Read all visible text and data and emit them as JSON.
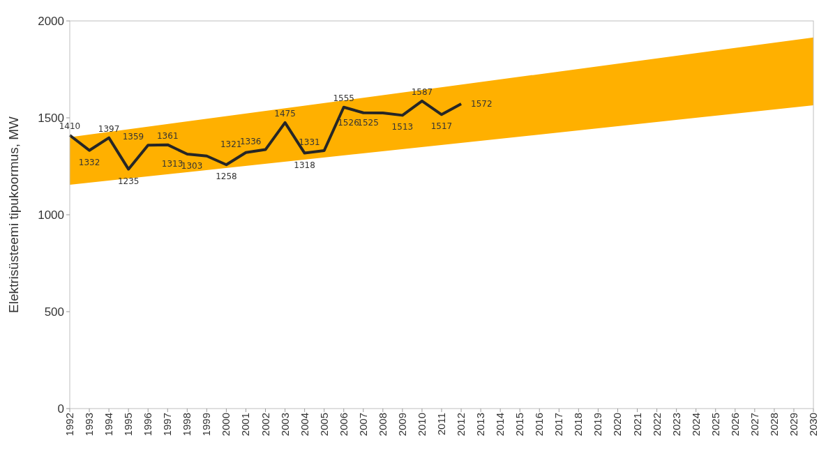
{
  "chart_data": {
    "type": "line",
    "ylabel": "Elektrisüsteemi tipukoormus, MW",
    "xlim": [
      1992,
      2030
    ],
    "xticks": [
      1992,
      1993,
      1994,
      1995,
      1996,
      1997,
      1998,
      1999,
      2000,
      2001,
      2002,
      2003,
      2004,
      2005,
      2006,
      2007,
      2008,
      2009,
      2010,
      2011,
      2012,
      2013,
      2014,
      2015,
      2016,
      2017,
      2018,
      2019,
      2020,
      2021,
      2022,
      2023,
      2024,
      2025,
      2026,
      2027,
      2028,
      2029,
      2030
    ],
    "ylim": [
      0,
      2000
    ],
    "yticks": [
      0,
      500,
      1000,
      1500,
      2000
    ],
    "grid": false,
    "marker": "none",
    "data_labels": true,
    "series": [
      {
        "color": "#ffb000",
        "x": [
          1992,
          2030
        ],
        "values": [
          null,
          null
        ],
        "lower": [
          1155,
          1565
        ],
        "upper": [
          1400,
          1915
        ]
      },
      {
        "color": "#262626",
        "x": [
          1992,
          1993,
          1994,
          1995,
          1996,
          1997,
          1998,
          1999,
          2000,
          2001,
          2002,
          2003,
          2004,
          2005,
          2006,
          2007,
          2008,
          2009,
          2010,
          2011,
          2012
        ],
        "values": [
          1410,
          1332,
          1397,
          1235,
          1359,
          1361,
          1313,
          1303,
          1258,
          1321,
          1336,
          1475,
          1318,
          1331,
          1555,
          1526,
          1525,
          1513,
          1587,
          1517,
          1572
        ]
      }
    ]
  }
}
